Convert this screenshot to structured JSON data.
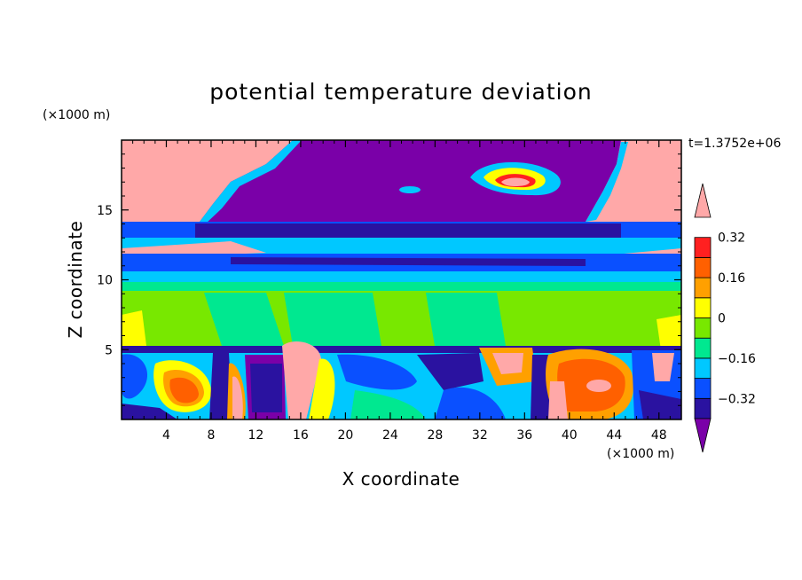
{
  "chart_data": {
    "type": "heatmap",
    "title": "potential temperature deviation",
    "xlabel": "X coordinate",
    "ylabel": "Z coordinate",
    "x_unit": "(×1000 m)",
    "z_unit": "(×1000 m)",
    "time_label": "t=1.3752e+06",
    "xlim": [
      0,
      50
    ],
    "ylim": [
      0,
      20
    ],
    "x_ticks": [
      4,
      8,
      12,
      16,
      20,
      24,
      28,
      32,
      36,
      40,
      44,
      48
    ],
    "y_ticks": [
      5,
      10,
      15
    ],
    "colorbar": {
      "levels": [
        -0.4,
        -0.32,
        -0.24,
        -0.16,
        -0.08,
        0,
        0.08,
        0.16,
        0.24,
        0.32,
        0.4
      ],
      "labels": [
        "−0.32",
        "−0.16",
        "0",
        "0.16",
        "0.32"
      ],
      "label_values": [
        -0.32,
        -0.16,
        0,
        0.16,
        0.32
      ],
      "colors": [
        "#7a00a8",
        "#2a12a0",
        "#0a50ff",
        "#00c8ff",
        "#00e890",
        "#78e800",
        "#ffff00",
        "#ffa000",
        "#ff6000",
        "#ff2020",
        "#ffa8a8"
      ],
      "extend": "both"
    }
  }
}
